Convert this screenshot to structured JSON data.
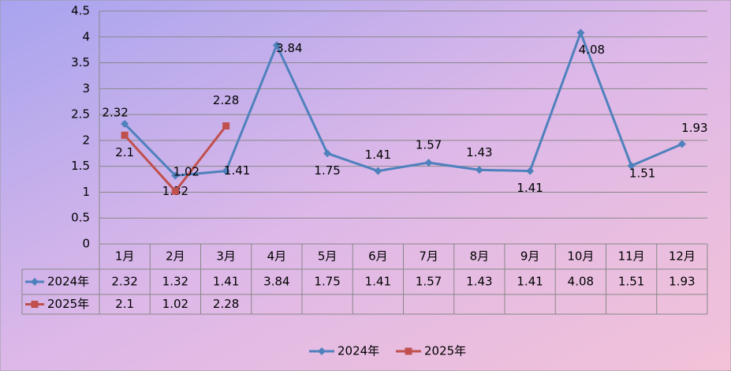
{
  "chart_data": {
    "type": "line",
    "categories": [
      "1月",
      "2月",
      "3月",
      "4月",
      "5月",
      "6月",
      "7月",
      "8月",
      "9月",
      "10月",
      "11月",
      "12月"
    ],
    "series": [
      {
        "name": "2024年",
        "color": "#4f81bd",
        "marker": "diamond",
        "values": [
          2.32,
          1.32,
          1.41,
          3.84,
          1.75,
          1.41,
          1.57,
          1.43,
          1.41,
          4.08,
          1.51,
          1.93
        ]
      },
      {
        "name": "2025年",
        "color": "#c0504d",
        "marker": "square",
        "values": [
          2.1,
          1.02,
          2.28,
          null,
          null,
          null,
          null,
          null,
          null,
          null,
          null,
          null
        ]
      }
    ],
    "ylim": [
      0,
      4.5
    ],
    "yticks": [
      0,
      0.5,
      1,
      1.5,
      2,
      2.5,
      3,
      3.5,
      4,
      4.5
    ],
    "grid": true,
    "data_table": true,
    "legend": "bottom"
  }
}
